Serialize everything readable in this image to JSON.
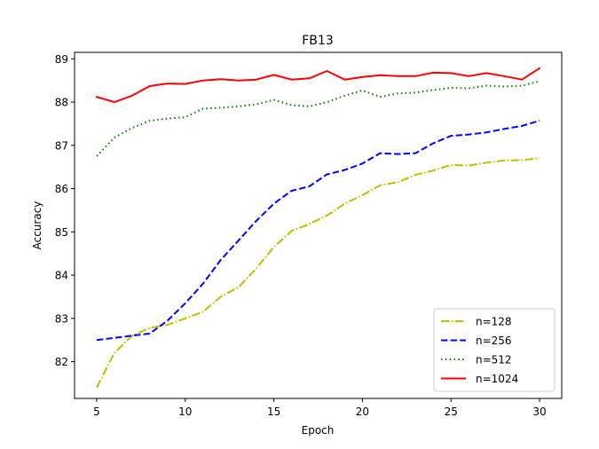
{
  "chart_data": {
    "type": "line",
    "title": "FB13",
    "xlabel": "Epoch",
    "ylabel": "Accuracy",
    "xlim": [
      3.75,
      31.25
    ],
    "ylim": [
      81.15,
      89.15
    ],
    "xticks": [
      5,
      10,
      15,
      20,
      25,
      30
    ],
    "yticks": [
      82,
      83,
      84,
      85,
      86,
      87,
      88,
      89
    ],
    "grid": false,
    "legend_position": "lower right",
    "x": [
      5,
      6,
      7,
      8,
      9,
      10,
      11,
      12,
      13,
      14,
      15,
      16,
      17,
      18,
      19,
      20,
      21,
      22,
      23,
      24,
      25,
      26,
      27,
      28,
      29,
      30
    ],
    "series": [
      {
        "name": "n=128",
        "color": "#bfbf00",
        "linestyle": "dashdot",
        "values": [
          81.4,
          82.2,
          82.6,
          82.78,
          82.85,
          83.0,
          83.15,
          83.5,
          83.72,
          84.15,
          84.65,
          85.02,
          85.18,
          85.38,
          85.65,
          85.85,
          86.08,
          86.15,
          86.32,
          86.42,
          86.55,
          86.53,
          86.6,
          86.65,
          86.66,
          86.7
        ]
      },
      {
        "name": "n=256",
        "color": "#0000ff",
        "linestyle": "dashed",
        "values": [
          82.5,
          82.55,
          82.6,
          82.65,
          82.95,
          83.35,
          83.8,
          84.35,
          84.8,
          85.25,
          85.65,
          85.95,
          86.05,
          86.33,
          86.43,
          86.58,
          86.82,
          86.8,
          86.82,
          87.05,
          87.22,
          87.25,
          87.3,
          87.38,
          87.45,
          87.57
        ]
      },
      {
        "name": "n=512",
        "color": "#008000",
        "linestyle": "dotted",
        "values": [
          86.75,
          87.18,
          87.4,
          87.57,
          87.62,
          87.65,
          87.85,
          87.87,
          87.9,
          87.95,
          88.05,
          87.93,
          87.9,
          88.0,
          88.15,
          88.27,
          88.12,
          88.2,
          88.22,
          88.28,
          88.33,
          88.32,
          88.38,
          88.36,
          88.38,
          88.48
        ]
      },
      {
        "name": "n=1024",
        "color": "#ff0000",
        "linestyle": "solid",
        "values": [
          88.12,
          88.0,
          88.15,
          88.37,
          88.43,
          88.42,
          88.5,
          88.53,
          88.5,
          88.52,
          88.63,
          88.52,
          88.55,
          88.72,
          88.52,
          88.58,
          88.62,
          88.6,
          88.6,
          88.68,
          88.67,
          88.6,
          88.67,
          88.6,
          88.52,
          88.78
        ]
      }
    ]
  }
}
